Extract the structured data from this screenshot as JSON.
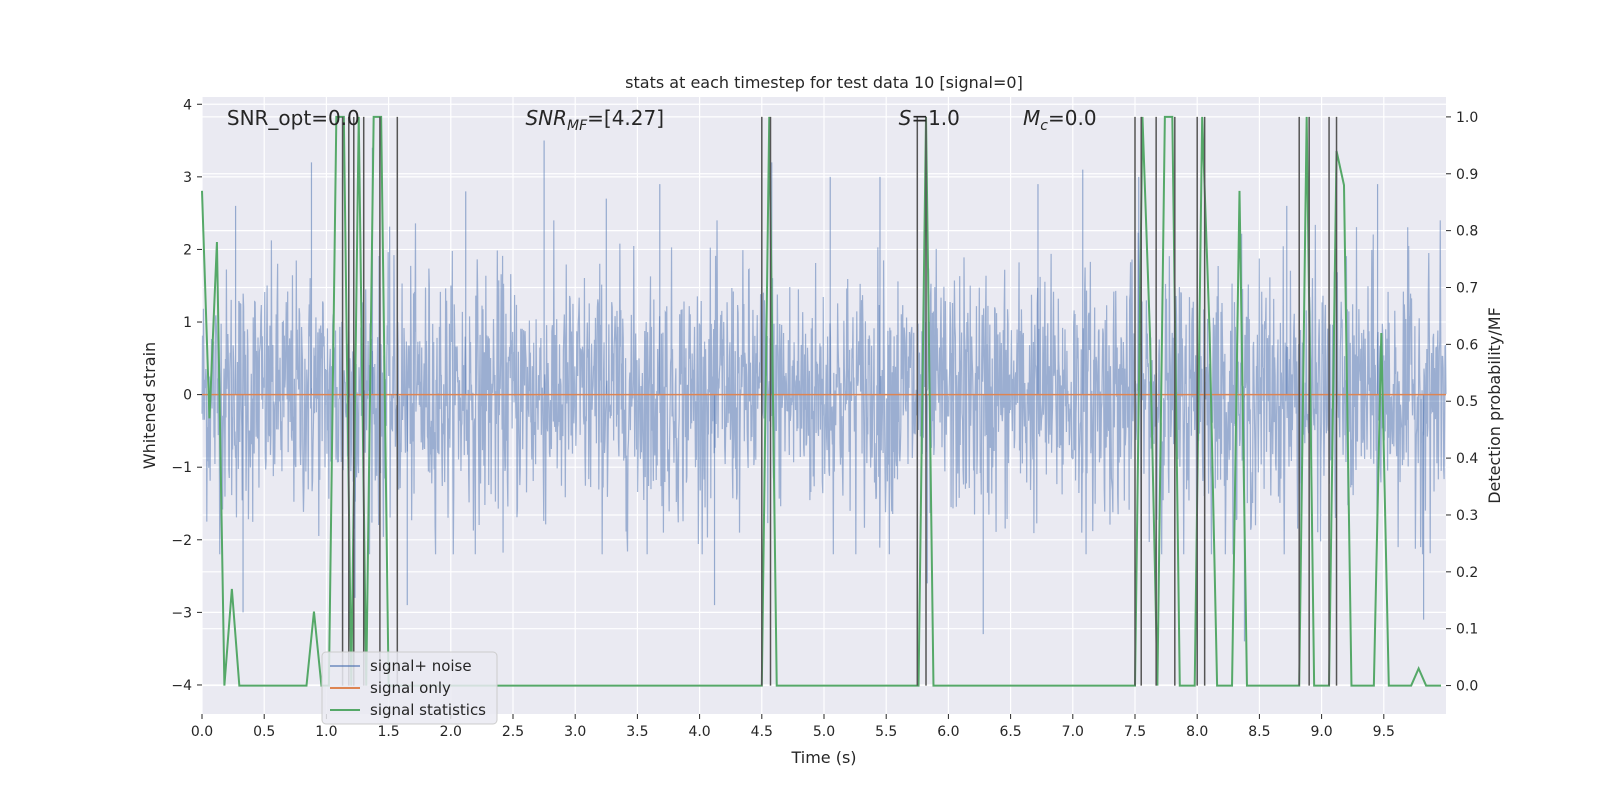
{
  "chart_data": {
    "type": "line",
    "title": "stats at each timestep for test data 10 [signal=0]",
    "xlabel": "Time (s)",
    "ylabel": "Whitened strain",
    "y2label": "Detection probability/MF",
    "xlim": [
      0.0,
      10.0
    ],
    "ylim": [
      -4.4,
      4.1
    ],
    "y2lim": [
      -0.05,
      1.035
    ],
    "x_ticks": [
      0.0,
      0.5,
      1.0,
      1.5,
      2.0,
      2.5,
      3.0,
      3.5,
      4.0,
      4.5,
      5.0,
      5.5,
      6.0,
      6.5,
      7.0,
      7.5,
      8.0,
      8.5,
      9.0,
      9.5
    ],
    "x_tick_labels": [
      "0.0",
      "0.5",
      "1.0",
      "1.5",
      "2.0",
      "2.5",
      "3.0",
      "3.5",
      "4.0",
      "4.5",
      "5.0",
      "5.5",
      "6.0",
      "6.5",
      "7.0",
      "7.5",
      "8.0",
      "8.5",
      "9.0",
      "9.5"
    ],
    "y_ticks": [
      4,
      3,
      2,
      1,
      0,
      -1,
      -2,
      -3,
      -4
    ],
    "y_tick_labels": [
      "4",
      "3",
      "2",
      "1",
      "0",
      "−1",
      "−2",
      "−3",
      "−4"
    ],
    "y2_ticks": [
      1.0,
      0.9,
      0.8,
      0.7,
      0.6,
      0.5,
      0.4,
      0.3,
      0.2,
      0.1,
      0.0
    ],
    "y2_tick_labels": [
      "1.0",
      "0.9",
      "0.8",
      "0.7",
      "0.6",
      "0.5",
      "0.4",
      "0.3",
      "0.2",
      "0.1",
      "0.0"
    ],
    "grid": true,
    "legend_position": "lower-left",
    "annotations": [
      {
        "label": "SNR_opt=0.0",
        "math": false,
        "base": "",
        "sub": "",
        "tail": "",
        "x": 0.2
      },
      {
        "label": "SNR_MF=[4.27]",
        "math": true,
        "base": "SNR",
        "sub": "MF",
        "tail": "=[4.27]",
        "x": 2.6
      },
      {
        "label": "S=1.0",
        "math": true,
        "base": "S",
        "sub": "",
        "tail": "=1.0",
        "x": 5.6
      },
      {
        "label": "M_c=0.0",
        "math": true,
        "base": "M",
        "sub": "c",
        "tail": "=0.0",
        "x": 6.6
      }
    ],
    "series": [
      {
        "name": "signal+ noise",
        "color": "#4c72b0",
        "axis": "left",
        "noise_std": 0.85,
        "spike_x": [
          0.27,
          0.33,
          0.88,
          1.18,
          1.23,
          1.37,
          1.65,
          2.12,
          2.75,
          3.25,
          3.68,
          4.12,
          4.58,
          5.05,
          5.45,
          5.83,
          6.28,
          6.72,
          7.08,
          7.53,
          8.06,
          8.38,
          8.72,
          9.12,
          9.45,
          9.82
        ],
        "spike_y": [
          2.6,
          -3.0,
          3.2,
          3.2,
          -2.8,
          3.4,
          -2.9,
          2.8,
          3.5,
          2.7,
          2.9,
          -2.9,
          3.2,
          3.0,
          3.0,
          -2.6,
          -3.3,
          2.9,
          3.1,
          3.0,
          -3.5,
          -3.4,
          2.6,
          3.0,
          2.9,
          -3.1
        ]
      },
      {
        "name": "signal only",
        "color": "#dd8452",
        "axis": "left",
        "x": [
          0.0,
          10.0
        ],
        "y": [
          0.0,
          0.0
        ]
      },
      {
        "name": "signal statistics",
        "color": "#55a868",
        "axis": "right",
        "x": [
          0.0,
          0.06,
          0.12,
          0.18,
          0.24,
          0.3,
          0.36,
          0.42,
          0.48,
          0.54,
          0.6,
          0.66,
          0.72,
          0.78,
          0.84,
          0.9,
          0.96,
          1.02,
          1.08,
          1.14,
          1.2,
          1.26,
          1.32,
          1.38,
          1.44,
          1.5,
          1.56,
          1.62,
          1.68,
          1.74,
          1.8,
          1.86,
          1.92,
          1.98,
          2.04,
          2.1,
          2.16,
          2.22,
          2.28,
          2.34,
          2.4,
          2.46,
          2.52,
          2.58,
          2.64,
          2.7,
          2.76,
          2.82,
          2.88,
          2.94,
          3.0,
          3.06,
          3.12,
          3.18,
          3.24,
          3.3,
          3.36,
          3.42,
          3.48,
          3.54,
          3.6,
          3.66,
          3.72,
          3.78,
          3.84,
          3.9,
          3.96,
          4.02,
          4.08,
          4.14,
          4.2,
          4.26,
          4.32,
          4.38,
          4.44,
          4.5,
          4.56,
          4.62,
          4.68,
          4.74,
          4.8,
          4.86,
          4.92,
          4.98,
          5.04,
          5.1,
          5.16,
          5.22,
          5.28,
          5.34,
          5.4,
          5.46,
          5.52,
          5.58,
          5.64,
          5.7,
          5.76,
          5.82,
          5.88,
          5.94,
          6.0,
          6.06,
          6.12,
          6.18,
          6.24,
          6.3,
          6.36,
          6.42,
          6.48,
          6.54,
          6.6,
          6.66,
          6.72,
          6.78,
          6.84,
          6.9,
          6.96,
          7.02,
          7.08,
          7.14,
          7.2,
          7.26,
          7.32,
          7.38,
          7.44,
          7.5,
          7.56,
          7.62,
          7.68,
          7.74,
          7.8,
          7.86,
          7.92,
          7.98,
          8.04,
          8.1,
          8.16,
          8.22,
          8.28,
          8.34,
          8.4,
          8.46,
          8.52,
          8.58,
          8.64,
          8.7,
          8.76,
          8.82,
          8.88,
          8.94,
          9.0,
          9.06,
          9.12,
          9.18,
          9.24,
          9.3,
          9.36,
          9.42,
          9.48,
          9.54,
          9.6,
          9.66,
          9.72,
          9.78,
          9.84,
          9.9,
          9.96
        ],
        "y": [
          0.87,
          0.47,
          0.78,
          0.0,
          0.17,
          0.0,
          0.0,
          0.0,
          0.0,
          0.0,
          0.0,
          0.0,
          0.0,
          0.0,
          0.0,
          0.13,
          0.0,
          0.0,
          1.0,
          1.0,
          0.0,
          1.0,
          0.0,
          1.0,
          1.0,
          0.0,
          0.0,
          0.0,
          0.0,
          0.0,
          0.0,
          0.0,
          0.0,
          0.0,
          0.0,
          0.0,
          0.0,
          0.0,
          0.0,
          0.0,
          0.0,
          0.0,
          0.0,
          0.0,
          0.0,
          0.0,
          0.0,
          0.0,
          0.0,
          0.0,
          0.0,
          0.0,
          0.0,
          0.0,
          0.0,
          0.0,
          0.0,
          0.0,
          0.0,
          0.0,
          0.0,
          0.0,
          0.0,
          0.0,
          0.0,
          0.0,
          0.0,
          0.0,
          0.0,
          0.0,
          0.0,
          0.0,
          0.0,
          0.0,
          0.0,
          0.0,
          1.0,
          0.0,
          0.0,
          0.0,
          0.0,
          0.0,
          0.0,
          0.0,
          0.0,
          0.0,
          0.0,
          0.0,
          0.0,
          0.0,
          0.0,
          0.0,
          0.0,
          0.0,
          0.0,
          0.0,
          0.0,
          1.0,
          0.0,
          0.0,
          0.0,
          0.0,
          0.0,
          0.0,
          0.0,
          0.0,
          0.0,
          0.0,
          0.0,
          0.0,
          0.0,
          0.0,
          0.0,
          0.0,
          0.0,
          0.0,
          0.0,
          0.0,
          0.0,
          0.0,
          0.0,
          0.0,
          0.0,
          0.0,
          0.0,
          0.0,
          1.0,
          0.62,
          0.0,
          1.0,
          1.0,
          0.0,
          0.0,
          0.0,
          1.0,
          0.62,
          0.0,
          0.0,
          0.0,
          0.87,
          0.0,
          0.0,
          0.0,
          0.0,
          0.0,
          0.0,
          0.0,
          0.0,
          1.0,
          0.0,
          0.0,
          0.0,
          0.94,
          0.88,
          0.0,
          0.0,
          0.0,
          0.0,
          0.62,
          0.0,
          0.0,
          0.0,
          0.0,
          0.03,
          0.0,
          0.0,
          0.0
        ]
      }
    ],
    "detection_lines": {
      "color": "#555555",
      "x": [
        1.13,
        1.18,
        1.22,
        1.3,
        1.43,
        1.57,
        4.5,
        4.57,
        5.75,
        5.82,
        7.5,
        7.55,
        7.67,
        7.82,
        8.0,
        8.06,
        8.82,
        8.9,
        9.06,
        9.12
      ]
    }
  }
}
